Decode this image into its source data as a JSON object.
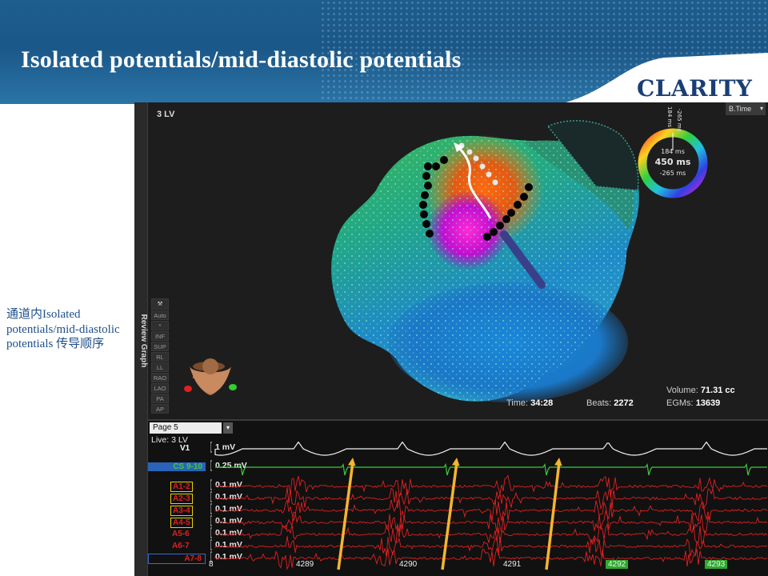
{
  "slide": {
    "title": "Isolated  potentials/mid-diastolic  potentials",
    "logo": "CLARITY",
    "side_note": "通道内Isolated potentials/mid-diastolic potentials 传导顺序"
  },
  "app": {
    "sidebar_tab": "Review Graph",
    "map_name": "3 LV",
    "timing_select": "B.Time",
    "view_buttons": [
      "Auto",
      "*",
      "INF",
      "SUP",
      "RL",
      "LL",
      "RAO",
      "LAO",
      "PA",
      "AP"
    ],
    "window": {
      "top_ms": "184 ms",
      "top2_ms": "-265 ms",
      "center_top": "184 ms",
      "center_main": "450 ms",
      "center_bottom": "-265 ms"
    },
    "stats": {
      "time_label": "Time:",
      "time_value": "34:28",
      "beats_label": "Beats:",
      "beats_value": "2272",
      "volume_label": "Volume:",
      "volume_value": "71.31 cc",
      "egms_label": "EGMs:",
      "egms_value": "13639"
    },
    "colors": {
      "green_trace": "#3ecb3e",
      "red_trace": "#e02020",
      "white_trace": "#f2f2f2",
      "arrow": "#f5b530",
      "selected_channel": "#2a63b8"
    }
  },
  "graph": {
    "page": "Page 5",
    "live": "Live: 3 LV",
    "channels": [
      {
        "name": "V1",
        "gain": "1 mV",
        "color": "#ffffff"
      },
      {
        "name": "CS 9-10",
        "gain": "0.25 mV",
        "color": "#3ecb3e"
      },
      {
        "name": "A1-2",
        "gain": "0.1 mV",
        "color": "#e02020"
      },
      {
        "name": "A2-3",
        "gain": "0.1 mV",
        "color": "#e02020"
      },
      {
        "name": "A3-4",
        "gain": "0.1 mV",
        "color": "#e02020"
      },
      {
        "name": "A4-5",
        "gain": "0.1 mV",
        "color": "#e02020"
      },
      {
        "name": "A5-6",
        "gain": "0.1 mV",
        "color": "#e02020"
      },
      {
        "name": "A6-7",
        "gain": "0.1 mV",
        "color": "#e02020"
      },
      {
        "name": "A7-8",
        "gain": "0.1 mV",
        "color": "#e02020"
      }
    ],
    "beats": [
      "8",
      "4289",
      "4290",
      "4291",
      "4292",
      "4293"
    ]
  }
}
